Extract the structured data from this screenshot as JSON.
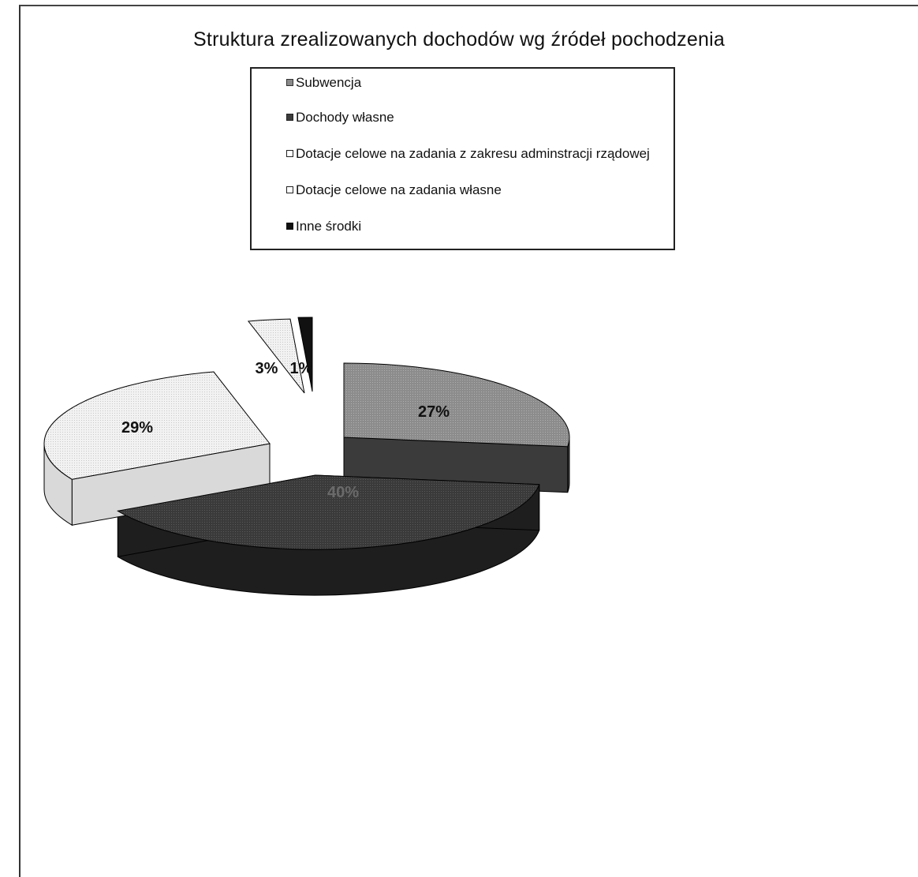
{
  "chart_data": {
    "type": "pie",
    "title": "Struktura zrealizowanych dochodów wg źródeł pochodzenia",
    "legend_position": "top",
    "slices": [
      {
        "label": "Subwencja",
        "value": 27,
        "value_label": "27%",
        "color": "#8a8a8a"
      },
      {
        "label": "Dochody własne",
        "value": 40,
        "value_label": "40%",
        "color": "#3c3c3c"
      },
      {
        "label": "Dotacje celowe na zadania z zakresu adminstracji rządowej",
        "value": 29,
        "value_label": "29%",
        "color": "#e8e8e8"
      },
      {
        "label": "Dotacje celowe na zadania własne",
        "value": 3,
        "value_label": "3%",
        "color": "#f4f4f4"
      },
      {
        "label": "Inne środki",
        "value": 1,
        "value_label": "1%",
        "color": "#111111"
      }
    ]
  },
  "legend": {
    "items": [
      {
        "label": "Subwencja",
        "color": "#8a8a8a"
      },
      {
        "label": "Dochody własne",
        "color": "#3c3c3c"
      },
      {
        "label": "Dotacje celowe na zadania z zakresu adminstracji rządowej",
        "color": "#ffffff"
      },
      {
        "label": "Dotacje celowe na zadania własne",
        "color": "#ffffff"
      },
      {
        "label": "Inne środki",
        "color": "#111111"
      }
    ]
  }
}
